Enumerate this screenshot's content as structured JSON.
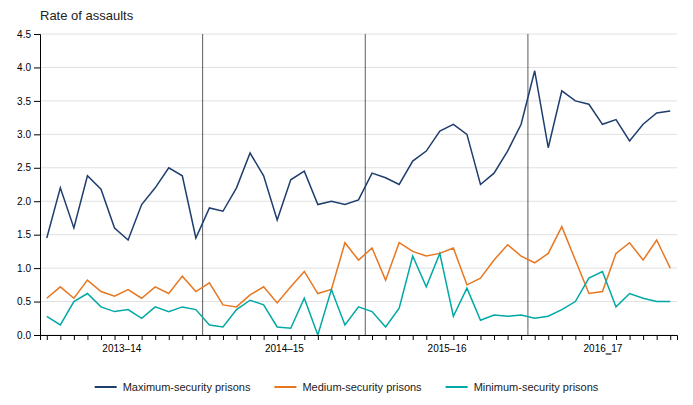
{
  "chart_data": {
    "type": "line",
    "title": "Rate of assaults",
    "categories": [
      "2013–14",
      null,
      null,
      null,
      null,
      null,
      null,
      null,
      null,
      null,
      null,
      null,
      "2014–15",
      null,
      null,
      null,
      null,
      null,
      null,
      null,
      null,
      null,
      null,
      null,
      "2015–16",
      null,
      null,
      null,
      null,
      null,
      null,
      null,
      null,
      null,
      null,
      null,
      "2016‗17",
      null,
      null,
      null,
      null,
      null,
      null,
      null,
      null,
      null,
      null
    ],
    "series": [
      {
        "name": "Maximum-security prisons",
        "color": "#1F3E6E",
        "values": [
          1.45,
          2.2,
          1.6,
          2.38,
          2.18,
          1.6,
          1.42,
          1.95,
          2.2,
          2.5,
          2.38,
          1.45,
          1.9,
          1.85,
          2.2,
          2.72,
          2.38,
          1.72,
          2.32,
          2.45,
          1.95,
          2.0,
          1.95,
          2.02,
          2.42,
          2.35,
          2.25,
          2.6,
          2.75,
          3.05,
          3.15,
          3.0,
          2.25,
          2.42,
          2.75,
          3.15,
          3.95,
          2.8,
          3.65,
          3.5,
          3.45,
          3.15,
          3.22,
          2.9,
          3.15,
          3.32,
          3.35
        ]
      },
      {
        "name": "Medium-security prisons",
        "color": "#E87722",
        "values": [
          0.55,
          0.72,
          0.55,
          0.82,
          0.65,
          0.58,
          0.68,
          0.55,
          0.72,
          0.62,
          0.88,
          0.65,
          0.78,
          0.45,
          0.42,
          0.6,
          0.72,
          0.48,
          0.72,
          0.95,
          0.62,
          0.68,
          1.38,
          1.12,
          1.3,
          0.82,
          1.38,
          1.25,
          1.18,
          1.22,
          1.3,
          0.75,
          0.85,
          1.12,
          1.35,
          1.18,
          1.08,
          1.22,
          1.62,
          1.12,
          0.62,
          0.65,
          1.22,
          1.38,
          1.12,
          1.42,
          1.0
        ]
      },
      {
        "name": "Minimum-security prisons",
        "color": "#00A9A5",
        "values": [
          0.28,
          0.15,
          0.5,
          0.62,
          0.42,
          0.35,
          0.38,
          0.25,
          0.42,
          0.35,
          0.42,
          0.38,
          0.15,
          0.12,
          0.38,
          0.52,
          0.45,
          0.12,
          0.1,
          0.55,
          0.0,
          0.68,
          0.15,
          0.42,
          0.35,
          0.12,
          0.4,
          1.18,
          0.72,
          1.22,
          0.28,
          0.7,
          0.22,
          0.3,
          0.28,
          0.3,
          0.25,
          0.28,
          0.38,
          0.5,
          0.85,
          0.95,
          0.42,
          0.62,
          0.55,
          0.5,
          0.5
        ]
      }
    ],
    "ylim": [
      0,
      4.5
    ],
    "yticks": [
      {
        "value": 0,
        "label": "0.0"
      },
      0.5,
      {
        "value": 1,
        "label": "1.0"
      },
      1.5,
      {
        "value": 2,
        "label": "2.0"
      },
      2.5,
      {
        "value": 3,
        "label": "3.0"
      },
      3.5,
      {
        "value": 4,
        "label": "4.0"
      },
      4.5
    ],
    "grid": true,
    "legend": "bottom"
  }
}
